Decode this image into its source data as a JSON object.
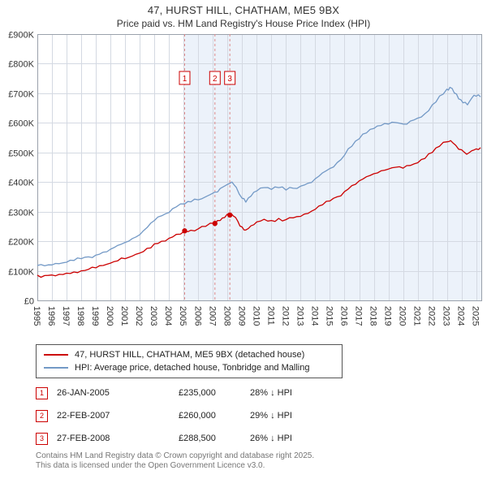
{
  "title": "47, HURST HILL, CHATHAM, ME5 9BX",
  "subtitle": "Price paid vs. HM Land Registry's House Price Index (HPI)",
  "chart_data": {
    "type": "line",
    "title": "Price paid vs. HM Land Registry's House Price Index (HPI)",
    "xlabel": "",
    "ylabel": "",
    "xlim": [
      1995,
      2025.35
    ],
    "ylim": [
      0,
      900000
    ],
    "grid": true,
    "legend_position": "bottom",
    "x_ticks": [
      1995,
      1996,
      1997,
      1998,
      1999,
      2000,
      2001,
      2002,
      2003,
      2004,
      2005,
      2006,
      2007,
      2008,
      2009,
      2010,
      2011,
      2012,
      2013,
      2014,
      2015,
      2016,
      2017,
      2018,
      2019,
      2020,
      2021,
      2022,
      2023,
      2024,
      2025
    ],
    "y_tick_step": 100000,
    "y_tick_labels": [
      "£0",
      "£100K",
      "£200K",
      "£300K",
      "£400K",
      "£500K",
      "£600K",
      "£700K",
      "£800K",
      "£900K"
    ],
    "shaded_from": 2005.07,
    "shade_color": "#dde7f5",
    "dashed_line_color": "#dc8a8a",
    "series": [
      {
        "name": "47, HURST HILL, CHATHAM, ME5 9BX (detached house)",
        "color": "#cc0000",
        "points": [
          [
            1995.0,
            85000
          ],
          [
            1995.5,
            84000
          ],
          [
            1996.0,
            86000
          ],
          [
            1996.5,
            88000
          ],
          [
            1997.0,
            92000
          ],
          [
            1997.5,
            96000
          ],
          [
            1998.0,
            100000
          ],
          [
            1998.5,
            105000
          ],
          [
            1999.0,
            110000
          ],
          [
            1999.5,
            118000
          ],
          [
            2000.0,
            126000
          ],
          [
            2000.5,
            134000
          ],
          [
            2001.0,
            141000
          ],
          [
            2001.5,
            150000
          ],
          [
            2002.0,
            160000
          ],
          [
            2002.5,
            176000
          ],
          [
            2003.0,
            191000
          ],
          [
            2003.5,
            200000
          ],
          [
            2004.0,
            210000
          ],
          [
            2004.5,
            223000
          ],
          [
            2005.07,
            235000
          ],
          [
            2005.5,
            237000
          ],
          [
            2006.0,
            242000
          ],
          [
            2006.5,
            250000
          ],
          [
            2007.14,
            260000
          ],
          [
            2007.5,
            270000
          ],
          [
            2007.8,
            280000
          ],
          [
            2008.16,
            288500
          ],
          [
            2008.4,
            285000
          ],
          [
            2008.7,
            268000
          ],
          [
            2009.0,
            248000
          ],
          [
            2009.25,
            238000
          ],
          [
            2009.6,
            252000
          ],
          [
            2010.0,
            265000
          ],
          [
            2010.5,
            274000
          ],
          [
            2011.0,
            270000
          ],
          [
            2011.5,
            277000
          ],
          [
            2012.0,
            273000
          ],
          [
            2012.5,
            279000
          ],
          [
            2013.0,
            284000
          ],
          [
            2013.5,
            294000
          ],
          [
            2014.0,
            308000
          ],
          [
            2014.5,
            323000
          ],
          [
            2015.0,
            336000
          ],
          [
            2015.5,
            350000
          ],
          [
            2016.0,
            368000
          ],
          [
            2016.5,
            388000
          ],
          [
            2017.0,
            404000
          ],
          [
            2017.5,
            418000
          ],
          [
            2018.0,
            428000
          ],
          [
            2018.5,
            438000
          ],
          [
            2019.0,
            444000
          ],
          [
            2019.5,
            450000
          ],
          [
            2020.0,
            447000
          ],
          [
            2020.5,
            456000
          ],
          [
            2021.0,
            465000
          ],
          [
            2021.5,
            480000
          ],
          [
            2022.0,
            500000
          ],
          [
            2022.5,
            521000
          ],
          [
            2023.0,
            536000
          ],
          [
            2023.25,
            540000
          ],
          [
            2023.6,
            524000
          ],
          [
            2024.0,
            509000
          ],
          [
            2024.35,
            494000
          ],
          [
            2024.7,
            506000
          ],
          [
            2025.0,
            512000
          ],
          [
            2025.3,
            516000
          ]
        ]
      },
      {
        "name": "HPI: Average price, detached house, Tonbridge and Malling",
        "color": "#7399c6",
        "points": [
          [
            1995.0,
            118000
          ],
          [
            1995.5,
            117000
          ],
          [
            1996.0,
            120000
          ],
          [
            1996.5,
            124000
          ],
          [
            1997.0,
            129000
          ],
          [
            1997.5,
            135000
          ],
          [
            1998.0,
            141000
          ],
          [
            1998.5,
            147000
          ],
          [
            1999.0,
            153000
          ],
          [
            1999.5,
            163000
          ],
          [
            2000.0,
            173000
          ],
          [
            2000.5,
            186000
          ],
          [
            2001.0,
            196000
          ],
          [
            2001.5,
            209000
          ],
          [
            2002.0,
            222000
          ],
          [
            2002.5,
            246000
          ],
          [
            2003.0,
            270000
          ],
          [
            2003.5,
            286000
          ],
          [
            2004.0,
            297000
          ],
          [
            2004.5,
            316000
          ],
          [
            2005.07,
            326000
          ],
          [
            2005.5,
            333000
          ],
          [
            2006.0,
            340000
          ],
          [
            2006.5,
            350000
          ],
          [
            2007.14,
            366000
          ],
          [
            2007.5,
            378000
          ],
          [
            2008.0,
            392000
          ],
          [
            2008.3,
            400000
          ],
          [
            2008.6,
            382000
          ],
          [
            2009.0,
            345000
          ],
          [
            2009.25,
            332000
          ],
          [
            2009.6,
            352000
          ],
          [
            2010.0,
            370000
          ],
          [
            2010.5,
            381000
          ],
          [
            2011.0,
            375000
          ],
          [
            2011.5,
            381000
          ],
          [
            2012.0,
            373000
          ],
          [
            2012.5,
            379000
          ],
          [
            2013.0,
            386000
          ],
          [
            2013.5,
            396000
          ],
          [
            2014.0,
            411000
          ],
          [
            2014.5,
            431000
          ],
          [
            2015.0,
            446000
          ],
          [
            2015.5,
            466000
          ],
          [
            2016.0,
            491000
          ],
          [
            2016.5,
            521000
          ],
          [
            2017.0,
            546000
          ],
          [
            2017.5,
            566000
          ],
          [
            2018.0,
            581000
          ],
          [
            2018.5,
            591000
          ],
          [
            2019.0,
            596000
          ],
          [
            2019.5,
            601000
          ],
          [
            2020.0,
            596000
          ],
          [
            2020.5,
            606000
          ],
          [
            2021.0,
            616000
          ],
          [
            2021.5,
            631000
          ],
          [
            2022.0,
            661000
          ],
          [
            2022.5,
            691000
          ],
          [
            2023.0,
            714000
          ],
          [
            2023.2,
            720000
          ],
          [
            2023.5,
            701000
          ],
          [
            2023.8,
            681000
          ],
          [
            2024.1,
            668000
          ],
          [
            2024.4,
            661000
          ],
          [
            2024.7,
            684000
          ],
          [
            2025.0,
            690000
          ],
          [
            2025.3,
            688000
          ]
        ]
      }
    ],
    "markers": [
      {
        "label": "1",
        "x": 2005.07,
        "y": 235000
      },
      {
        "label": "2",
        "x": 2007.14,
        "y": 260000
      },
      {
        "label": "3",
        "x": 2008.16,
        "y": 288500
      }
    ]
  },
  "transactions": [
    {
      "num": "1",
      "date": "26-JAN-2005",
      "price": "£235,000",
      "hpi": "28% ↓ HPI"
    },
    {
      "num": "2",
      "date": "22-FEB-2007",
      "price": "£260,000",
      "hpi": "29% ↓ HPI"
    },
    {
      "num": "3",
      "date": "27-FEB-2008",
      "price": "£288,500",
      "hpi": "26% ↓ HPI"
    }
  ],
  "footer": {
    "line1": "Contains HM Land Registry data © Crown copyright and database right 2025.",
    "line2": "This data is licensed under the Open Government Licence v3.0."
  }
}
